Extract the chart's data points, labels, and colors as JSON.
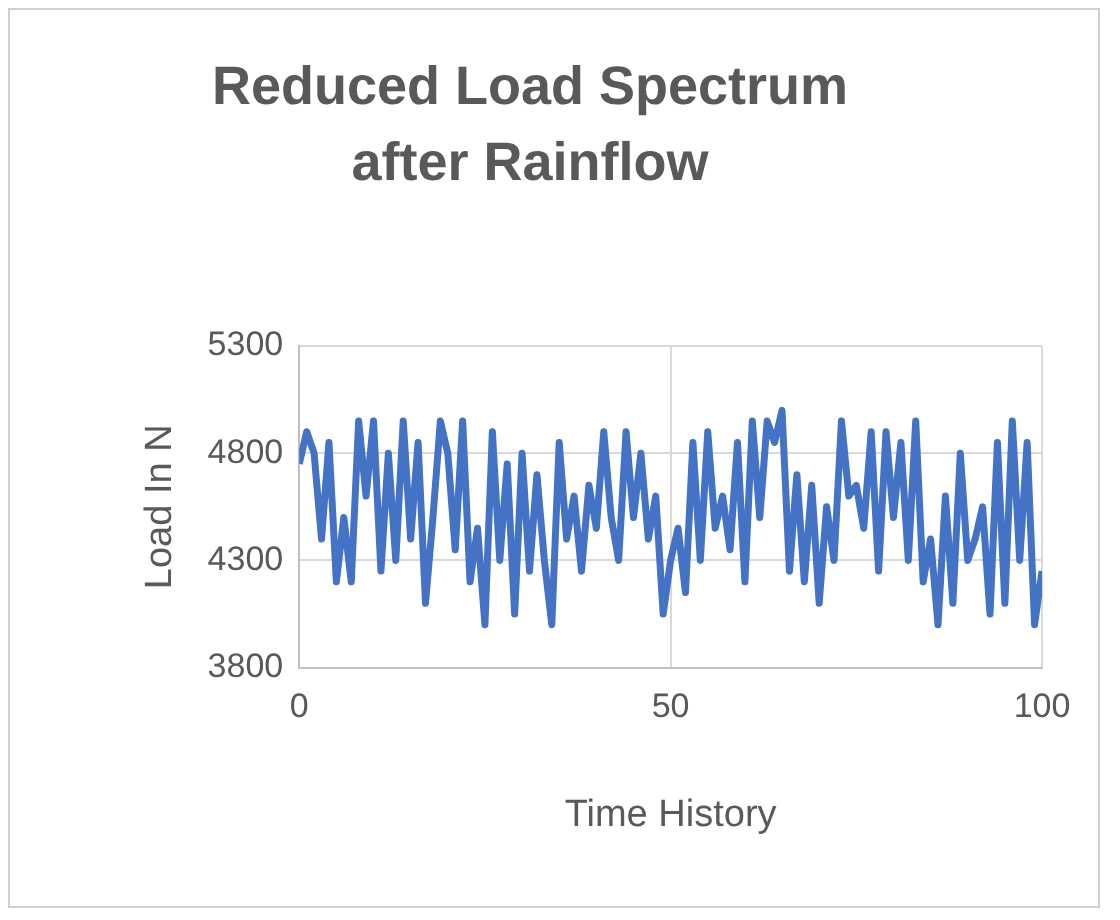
{
  "chart_data": {
    "type": "line",
    "title": "Reduced Load Spectrum after Rainflow",
    "xlabel": "Time History",
    "ylabel": "Load In N",
    "x": [
      0,
      1,
      2,
      3,
      4,
      5,
      6,
      7,
      8,
      9,
      10,
      11,
      12,
      13,
      14,
      15,
      16,
      17,
      18,
      19,
      20,
      21,
      22,
      23,
      24,
      25,
      26,
      27,
      28,
      29,
      30,
      31,
      32,
      33,
      34,
      35,
      36,
      37,
      38,
      39,
      40,
      41,
      42,
      43,
      44,
      45,
      46,
      47,
      48,
      49,
      50,
      51,
      52,
      53,
      54,
      55,
      56,
      57,
      58,
      59,
      60,
      61,
      62,
      63,
      64,
      65,
      66,
      67,
      68,
      69,
      70,
      71,
      72,
      73,
      74,
      75,
      76,
      77,
      78,
      79,
      80,
      81,
      82,
      83,
      84,
      85,
      86,
      87,
      88,
      89,
      90,
      91,
      92,
      93,
      94,
      95,
      96,
      97,
      98,
      99,
      100
    ],
    "series": [
      {
        "color": "#4472c4",
        "values": [
          4750,
          4900,
          4800,
          4400,
          4850,
          4200,
          4500,
          4200,
          4950,
          4600,
          4950,
          4250,
          4800,
          4300,
          4950,
          4400,
          4850,
          4100,
          4500,
          4950,
          4800,
          4350,
          4950,
          4200,
          4450,
          4000,
          4900,
          4300,
          4750,
          4050,
          4800,
          4250,
          4700,
          4300,
          4000,
          4850,
          4400,
          4600,
          4250,
          4650,
          4450,
          4900,
          4500,
          4300,
          4900,
          4500,
          4800,
          4400,
          4600,
          4050,
          4300,
          4450,
          4150,
          4850,
          4300,
          4900,
          4450,
          4600,
          4350,
          4850,
          4200,
          4950,
          4500,
          4950,
          4850,
          5000,
          4250,
          4700,
          4200,
          4650,
          4100,
          4550,
          4300,
          4950,
          4600,
          4650,
          4450,
          4900,
          4250,
          4900,
          4500,
          4850,
          4300,
          4950,
          4200,
          4400,
          4000,
          4600,
          4100,
          4800,
          4300,
          4400,
          4550,
          4050,
          4850,
          4100,
          4950,
          4300,
          4850,
          4000,
          4250
        ]
      }
    ],
    "xlim": [
      0,
      100
    ],
    "xticks": [
      0,
      50,
      100
    ],
    "ylim": [
      3800,
      5300
    ],
    "yticks": [
      3800,
      4300,
      4800,
      5300
    ],
    "grid": true,
    "legend": false,
    "marker": "none",
    "line_style": "solid"
  }
}
